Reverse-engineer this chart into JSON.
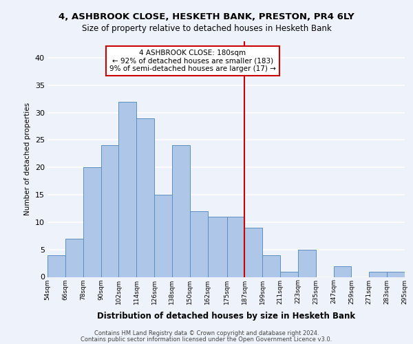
{
  "title1": "4, ASHBROOK CLOSE, HESKETH BANK, PRESTON, PR4 6LY",
  "title2": "Size of property relative to detached houses in Hesketh Bank",
  "xlabel": "Distribution of detached houses by size in Hesketh Bank",
  "ylabel": "Number of detached properties",
  "bin_edges": [
    54,
    66,
    78,
    90,
    102,
    114,
    126,
    138,
    150,
    162,
    175,
    187,
    199,
    211,
    223,
    235,
    247,
    259,
    271,
    283,
    295
  ],
  "counts": [
    4,
    7,
    20,
    24,
    32,
    29,
    15,
    24,
    12,
    11,
    11,
    9,
    4,
    1,
    5,
    0,
    2,
    0,
    1,
    1
  ],
  "bar_color": "#aec6e8",
  "bar_edgecolor": "#5a8fc0",
  "reference_line_x": 187,
  "reference_line_color": "#cc0000",
  "annotation_text": "4 ASHBROOK CLOSE: 180sqm\n← 92% of detached houses are smaller (183)\n9% of semi-detached houses are larger (17) →",
  "annotation_box_color": "#ffffff",
  "annotation_box_edgecolor": "#cc0000",
  "ylim": [
    0,
    43
  ],
  "yticks": [
    0,
    5,
    10,
    15,
    20,
    25,
    30,
    35,
    40
  ],
  "tick_labels": [
    "54sqm",
    "66sqm",
    "78sqm",
    "90sqm",
    "102sqm",
    "114sqm",
    "126sqm",
    "138sqm",
    "150sqm",
    "162sqm",
    "175sqm",
    "187sqm",
    "199sqm",
    "211sqm",
    "223sqm",
    "235sqm",
    "247sqm",
    "259sqm",
    "271sqm",
    "283sqm",
    "295sqm"
  ],
  "footer1": "Contains HM Land Registry data © Crown copyright and database right 2024.",
  "footer2": "Contains public sector information licensed under the Open Government Licence v3.0.",
  "bg_color": "#eef3fb",
  "grid_color": "#ffffff"
}
